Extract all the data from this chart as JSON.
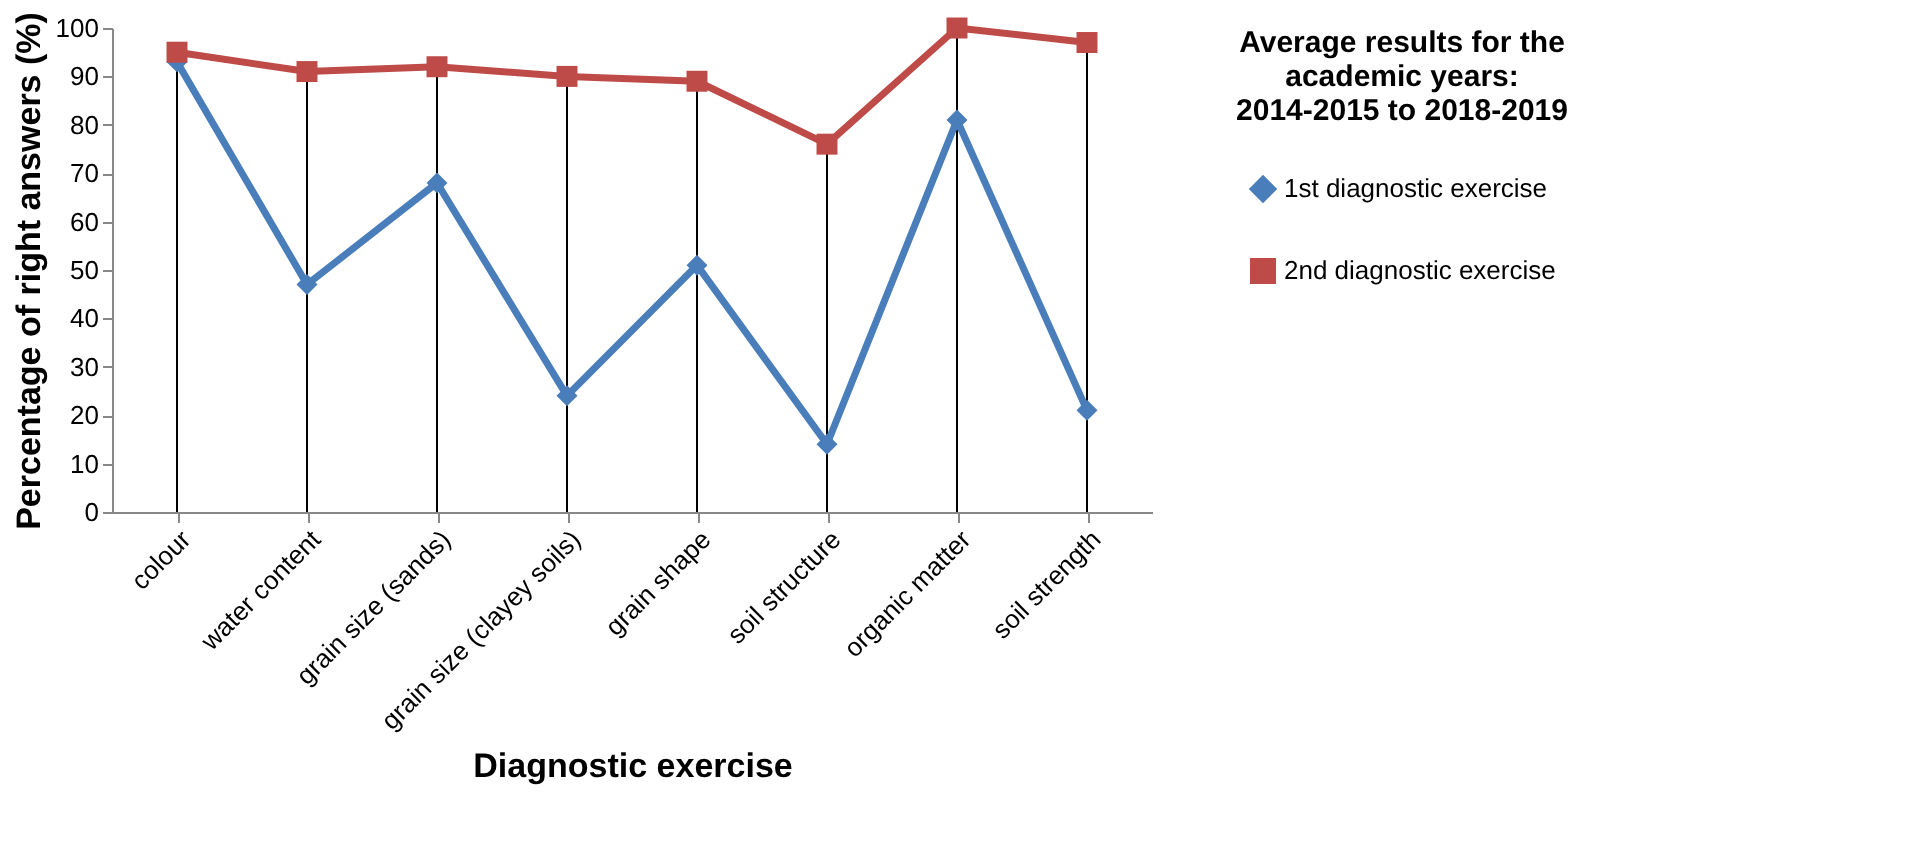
{
  "chart_data": {
    "type": "line",
    "categories": [
      "colour",
      "water content",
      "grain size (sands)",
      "grain size (clayey soils)",
      "grain shape",
      "soil structure",
      "organic matter",
      "soil strength"
    ],
    "series": [
      {
        "name": "1st diagnostic exercise",
        "color": "#4a7ebb",
        "marker": "diamond",
        "values": [
          93,
          47,
          68,
          24,
          51,
          14,
          81,
          21
        ]
      },
      {
        "name": "2nd diagnostic exercise",
        "color": "#be4b48",
        "marker": "square",
        "values": [
          95,
          91,
          92,
          90,
          89,
          76,
          100,
          97
        ],
        "errors": [
          [
            0,
            95
          ],
          [
            0,
            91
          ],
          [
            0,
            92
          ],
          [
            0,
            90
          ],
          [
            0,
            89
          ],
          [
            0,
            76
          ],
          [
            0,
            100
          ],
          [
            0,
            97
          ]
        ]
      }
    ],
    "xlabel": "Diagnostic exercise",
    "ylabel": "Percentage of right answers (%)",
    "legend_title": "Average results for the academic years: 2014-2015  to 2018-2019",
    "ylim": [
      0,
      100
    ],
    "yticks": [
      0,
      10,
      20,
      30,
      40,
      50,
      60,
      70,
      80,
      90,
      100
    ],
    "grid": false,
    "legend": "right",
    "line_style": "solid"
  }
}
